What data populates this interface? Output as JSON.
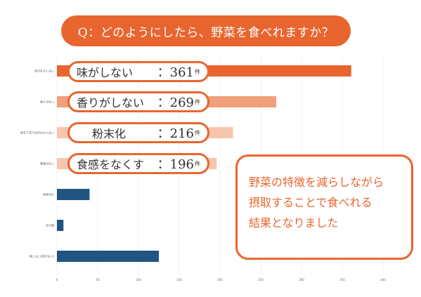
{
  "title": "Q：どのようにしたら、野菜を食べれますか？",
  "chart_data": {
    "type": "bar",
    "orientation": "horizontal",
    "categories": [
      "味がおきくない",
      "香りがない",
      "粉末で見た目がわからない",
      "食感がない",
      "他味付け",
      "生の物",
      "味しない(形がない)"
    ],
    "values": [
      361,
      269,
      216,
      196,
      40,
      8,
      125
    ],
    "colors": [
      "#e8652f",
      "#f0a07a",
      "#f5c6ad",
      "#f5c6ad",
      "#1f5580",
      "#1f5580",
      "#1f5580"
    ],
    "xlim": [
      0,
      400
    ],
    "xticks": [
      "0",
      "50",
      "100",
      "150",
      "200",
      "250",
      "300",
      "350",
      "400"
    ],
    "grid": true
  },
  "callouts": [
    {
      "text": "味がしない",
      "value": "：361",
      "unit": "件"
    },
    {
      "text": "香りがしない",
      "value": "：269",
      "unit": "件"
    },
    {
      "text": "粉末化",
      "value": "：216",
      "unit": "件"
    },
    {
      "text": "食感をなくす",
      "value": "：196",
      "unit": "件"
    }
  ],
  "summary": {
    "line1": "野菜の特徴を減らしながら",
    "line2": "摂取することで食べれる",
    "line3": "結果となりました"
  }
}
